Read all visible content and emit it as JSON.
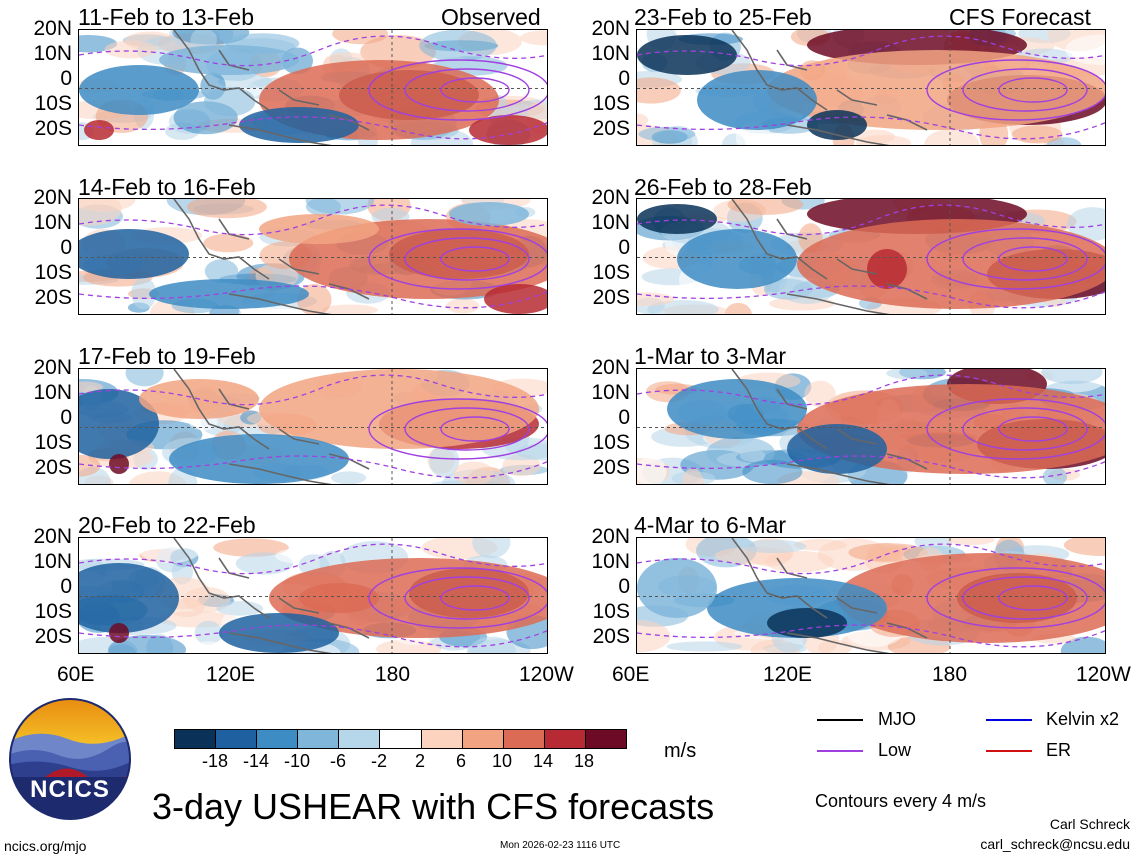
{
  "title": "3-day USHEAR with CFS forecasts",
  "observed_label": "Observed",
  "forecast_label": "CFS Forecast",
  "units": "m/s",
  "contour_note": "Contours every 4 m/s",
  "author": "Carl Schreck",
  "email": "carl_schreck@ncsu.edu",
  "website": "ncics.org/mjo",
  "timestamp": "Mon 2026-02-23 1116 UTC",
  "logo_text": "NCICS",
  "lat_labels": [
    "20N",
    "10N",
    "0",
    "10S",
    "20S"
  ],
  "lon_labels_left": [
    "60E",
    "120E",
    "180",
    "120W"
  ],
  "lon_labels_right": [
    "60E",
    "120E",
    "180",
    "120W"
  ],
  "colorbar": {
    "colors": [
      "#0a3258",
      "#1f61a0",
      "#3d8cc4",
      "#7fb6da",
      "#b6d6ea",
      "#ffffff",
      "#fbd3bf",
      "#f2a482",
      "#dc6b55",
      "#b72a33",
      "#6d0a25"
    ],
    "ticks": [
      "-18",
      "-14",
      "-10",
      "-6",
      "-2",
      "2",
      "6",
      "10",
      "14",
      "18"
    ]
  },
  "legend": [
    {
      "label": "MJO",
      "color": "#000000"
    },
    {
      "label": "Kelvin x2",
      "color": "#0000e0"
    },
    {
      "label": "Low",
      "color": "#a040e0"
    },
    {
      "label": "ER",
      "color": "#d01010"
    }
  ],
  "chart_data": {
    "type": "heatmap",
    "variable": "USHEAR (3-day mean)",
    "x_range": [
      "60E",
      "120W"
    ],
    "y_range": [
      "20S",
      "20N"
    ],
    "panels": [
      {
        "period": "11-Feb to 13-Feb",
        "kind": "Observed"
      },
      {
        "period": "14-Feb to 16-Feb",
        "kind": "Observed"
      },
      {
        "period": "17-Feb to 19-Feb",
        "kind": "Observed"
      },
      {
        "period": "20-Feb to 22-Feb",
        "kind": "Observed"
      },
      {
        "period": "23-Feb to 25-Feb",
        "kind": "CFS Forecast"
      },
      {
        "period": "26-Feb to 28-Feb",
        "kind": "CFS Forecast"
      },
      {
        "period": "1-Mar to 3-Mar",
        "kind": "CFS Forecast"
      },
      {
        "period": "4-Mar to 6-Mar",
        "kind": "CFS Forecast"
      }
    ]
  }
}
